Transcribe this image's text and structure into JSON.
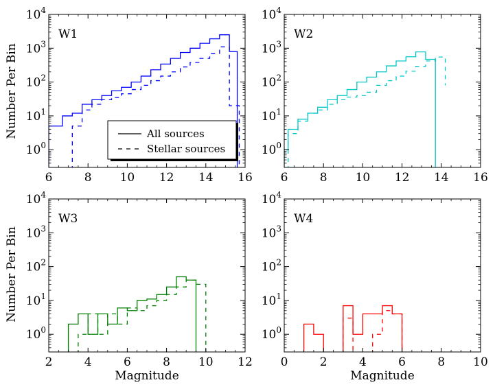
{
  "figure": {
    "ylabel_top": "Number Per Bin",
    "ylabel_bottom": "Number Per Bin",
    "xlabel_bottom": "Magnitude"
  },
  "legend": {
    "entries": [
      {
        "label": "All sources",
        "style": "solid"
      },
      {
        "label": "Stellar sources",
        "style": "dashed"
      }
    ],
    "placement": "lower-right"
  },
  "chart_data": [
    {
      "type": "histogram",
      "panel_label": "W1",
      "color": "#0000ff",
      "xlim": [
        6,
        16
      ],
      "ylim": [
        0.3,
        10000
      ],
      "yscale": "log",
      "xticks": [
        6,
        8,
        10,
        12,
        14,
        16
      ],
      "xlabel": "",
      "ylabel": "Number Per Bin",
      "series": [
        {
          "name": "All sources",
          "style": "solid",
          "edges": [
            6.0,
            6.7,
            7.2,
            7.7,
            8.2,
            8.7,
            9.2,
            9.7,
            10.2,
            10.7,
            11.2,
            11.7,
            12.2,
            12.7,
            13.2,
            13.7,
            14.2,
            14.7,
            15.2,
            15.6
          ],
          "values": [
            5,
            10,
            12,
            22,
            30,
            40,
            55,
            70,
            100,
            150,
            230,
            340,
            500,
            750,
            1000,
            1400,
            1900,
            2500,
            800
          ]
        },
        {
          "name": "Stellar sources",
          "style": "dashed",
          "edges": [
            7.2,
            7.7,
            8.2,
            8.7,
            9.2,
            9.7,
            10.2,
            10.7,
            11.2,
            11.7,
            12.2,
            12.7,
            13.2,
            13.7,
            14.2,
            14.7,
            15.2,
            15.7
          ],
          "values": [
            5,
            15,
            22,
            30,
            35,
            45,
            60,
            80,
            110,
            150,
            200,
            280,
            380,
            500,
            700,
            1100,
            20
          ]
        }
      ]
    },
    {
      "type": "histogram",
      "panel_label": "W2",
      "color": "#00c8c8",
      "xlim": [
        6,
        16
      ],
      "ylim": [
        0.3,
        10000
      ],
      "yscale": "log",
      "xticks": [
        6,
        8,
        10,
        12,
        14,
        16
      ],
      "xlabel": "",
      "ylabel": "",
      "series": [
        {
          "name": "All sources",
          "style": "solid",
          "edges": [
            6.0,
            6.2,
            6.7,
            7.2,
            7.7,
            8.2,
            8.7,
            9.2,
            9.7,
            10.2,
            10.7,
            11.2,
            11.7,
            12.2,
            12.7,
            13.2,
            13.7
          ],
          "values": [
            1,
            4,
            8,
            12,
            18,
            30,
            40,
            60,
            100,
            140,
            200,
            300,
            420,
            560,
            780,
            470
          ]
        },
        {
          "name": "Stellar sources",
          "style": "dashed",
          "edges": [
            6.2,
            6.7,
            7.2,
            7.7,
            8.2,
            8.7,
            9.2,
            9.7,
            10.2,
            10.7,
            11.2,
            11.7,
            12.2,
            12.7,
            13.2,
            13.7,
            14.2
          ],
          "values": [
            3,
            7,
            12,
            15,
            22,
            30,
            36,
            40,
            50,
            80,
            110,
            150,
            210,
            290,
            420,
            550,
            80
          ]
        }
      ]
    },
    {
      "type": "histogram",
      "panel_label": "W3",
      "color": "#008000",
      "xlim": [
        2,
        12
      ],
      "ylim": [
        0.3,
        10000
      ],
      "yscale": "log",
      "xticks": [
        2,
        4,
        6,
        8,
        10,
        12
      ],
      "xlabel": "Magnitude",
      "ylabel": "Number Per Bin",
      "series": [
        {
          "name": "All sources",
          "style": "solid",
          "edges": [
            3.0,
            3.5,
            4.0,
            4.5,
            5.0,
            5.5,
            6.0,
            6.5,
            7.0,
            7.5,
            8.0,
            8.5,
            9.0,
            9.5
          ],
          "values": [
            2,
            4,
            1,
            4,
            2,
            6,
            5,
            10,
            11,
            15,
            25,
            50,
            40
          ]
        },
        {
          "name": "Stellar sources",
          "style": "dashed",
          "edges": [
            3.5,
            4.0,
            4.5,
            5.0,
            5.5,
            6.0,
            6.5,
            7.0,
            7.5,
            8.0,
            8.5,
            9.0,
            9.5,
            10.0
          ],
          "values": [
            1,
            4,
            1,
            4,
            2,
            6,
            5,
            7,
            10,
            15,
            25,
            40,
            30
          ]
        }
      ]
    },
    {
      "type": "histogram",
      "panel_label": "W4",
      "color": "#ff0000",
      "xlim": [
        0,
        10
      ],
      "ylim": [
        0.3,
        10000
      ],
      "yscale": "log",
      "xticks": [
        0,
        2,
        4,
        6,
        8,
        10
      ],
      "xlabel": "Magnitude",
      "ylabel": "",
      "series": [
        {
          "name": "All sources",
          "style": "solid",
          "edges": [
            1.0,
            1.5,
            2.0
          ],
          "values": [
            2,
            1
          ]
        },
        {
          "name": "All sources",
          "style": "solid",
          "edges": [
            3.0,
            3.5,
            4.0,
            4.5,
            5.0,
            5.5,
            6.0
          ],
          "values": [
            7,
            1,
            4,
            4,
            7,
            4
          ]
        },
        {
          "name": "Stellar sources",
          "style": "dashed",
          "edges": [
            3.0,
            3.5
          ],
          "values": [
            3
          ]
        },
        {
          "name": "Stellar sources",
          "style": "dashed",
          "edges": [
            4.5,
            5.0,
            5.5,
            6.0
          ],
          "values": [
            1,
            5,
            4
          ]
        }
      ]
    }
  ]
}
